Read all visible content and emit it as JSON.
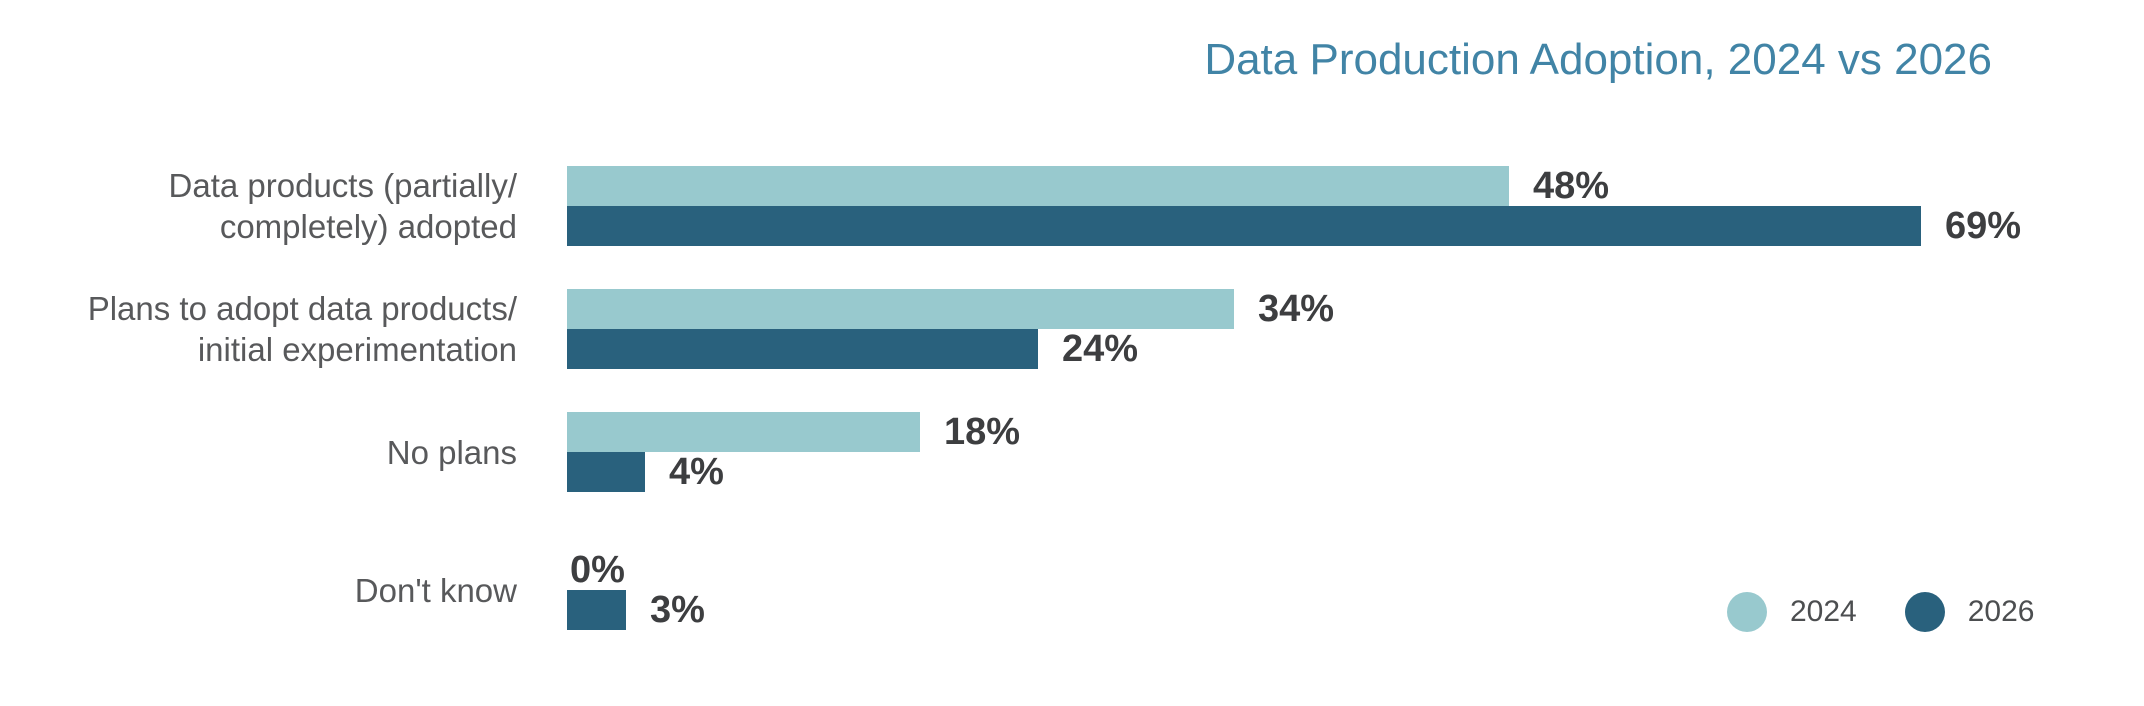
{
  "title": "Data Production Adoption, 2024 vs 2026",
  "colors": {
    "series_2024": "#98c9ce",
    "series_2026": "#29617d",
    "title": "#4184a6",
    "category_label": "#58595b",
    "value_label": "#3d3e40",
    "legend_label": "#4c4e50",
    "background": "#ffffff"
  },
  "chart_data": {
    "type": "bar",
    "orientation": "horizontal",
    "title": "Data Production Adoption, 2024 vs 2026",
    "categories": [
      "Data products (partially/\ncompletely) adopted",
      "Plans to adopt data products/\ninitial experimentation",
      "No plans",
      "Don't know"
    ],
    "series": [
      {
        "name": "2024",
        "color": "#98c9ce",
        "values": [
          48,
          34,
          18,
          0
        ],
        "value_labels": [
          "48%",
          "34%",
          "18%",
          "0%"
        ]
      },
      {
        "name": "2026",
        "color": "#29617d",
        "values": [
          69,
          24,
          4,
          3
        ],
        "value_labels": [
          "69%",
          "24%",
          "4%",
          "3%"
        ]
      }
    ],
    "value_unit": "%",
    "axis": {
      "min": 0,
      "max_visible_value": 69,
      "gridlines": false,
      "axis_labels": false
    },
    "data_labels": "outside-end",
    "legend_position": "bottom-right"
  },
  "legend": {
    "items": [
      {
        "label": "2024",
        "color": "#98c9ce"
      },
      {
        "label": "2026",
        "color": "#29617d"
      }
    ]
  }
}
